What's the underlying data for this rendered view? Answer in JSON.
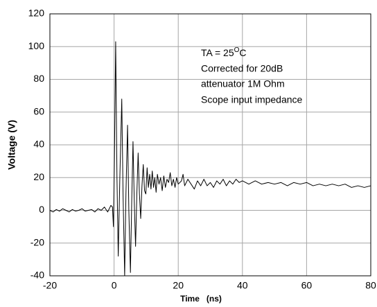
{
  "chart_data": {
    "type": "line",
    "xlabel": "Time   (ns)",
    "ylabel": "Voltage (V)",
    "annotation": {
      "first_line": [
        "TA = 25",
        "O",
        "C"
      ],
      "lines": [
        "Corrected for 20dB",
        "attenuator 1M Ohm",
        "Scope input impedance"
      ]
    },
    "color": "#000000",
    "grid": true,
    "xlim": [
      -20,
      80
    ],
    "xticks": [
      -20,
      0,
      20,
      40,
      60,
      80
    ],
    "ylim": [
      -40,
      120
    ],
    "yticks": [
      -40,
      -20,
      0,
      20,
      40,
      60,
      80,
      100,
      120
    ],
    "x": [
      -20,
      -19,
      -18,
      -17,
      -16,
      -15,
      -14,
      -13,
      -12,
      -11,
      -10,
      -9,
      -8,
      -7,
      -6,
      -5,
      -4,
      -3,
      -2,
      -1,
      -0.5,
      -0.2,
      0.1,
      0.5,
      0.9,
      1.3,
      1.8,
      2.4,
      2.8,
      3.3,
      3.7,
      4.2,
      4.6,
      5.1,
      5.5,
      5.9,
      6.3,
      6.7,
      7.1,
      7.5,
      7.9,
      8.3,
      8.7,
      9.1,
      9.5,
      9.9,
      10.3,
      10.7,
      11.1,
      11.5,
      11.9,
      12.3,
      12.7,
      13.1,
      13.5,
      14,
      14.5,
      15,
      15.5,
      16,
      16.5,
      17,
      17.5,
      18,
      18.5,
      19,
      19.5,
      20,
      21,
      21.5,
      22,
      23,
      24,
      25,
      26,
      27,
      28,
      29,
      30,
      31,
      32,
      33,
      34,
      35,
      36,
      37,
      38,
      39,
      40,
      42,
      44,
      46,
      48,
      50,
      52,
      54,
      56,
      58,
      60,
      62,
      64,
      66,
      68,
      70,
      72,
      74,
      76,
      78,
      80
    ],
    "values": [
      0,
      -1,
      0.5,
      -0.5,
      1,
      0,
      -1,
      0.5,
      -0.5,
      0,
      1,
      -0.5,
      0,
      0.5,
      -1,
      1,
      0,
      2,
      -1,
      3,
      2,
      -10,
      30,
      103,
      20,
      -28,
      20,
      68,
      10,
      -40,
      10,
      52,
      0,
      -38,
      5,
      42,
      5,
      -22,
      10,
      35,
      10,
      -5,
      15,
      28,
      12,
      10,
      26,
      14,
      22,
      13,
      24,
      14,
      20,
      11,
      22,
      16,
      20,
      12,
      21,
      14,
      19,
      17,
      23,
      15,
      19,
      14,
      20,
      16,
      18,
      22,
      15,
      19,
      16,
      13,
      18,
      15,
      19,
      15,
      17,
      14,
      18,
      16,
      19,
      15,
      18,
      16,
      19,
      17,
      18,
      16,
      18,
      16,
      17,
      16,
      17,
      15,
      17,
      16,
      17,
      15,
      16,
      15,
      16,
      15,
      16,
      14,
      15,
      14,
      15
    ]
  }
}
